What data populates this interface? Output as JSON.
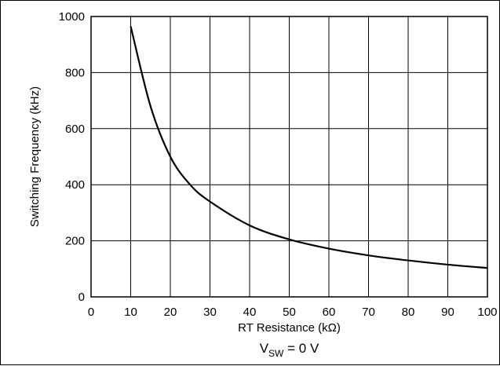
{
  "chart_data": {
    "type": "line",
    "xlabel": "RT Resistance (kΩ)",
    "ylabel": "Switching Frequency (kHz)",
    "xlim": [
      0,
      100
    ],
    "ylim": [
      0,
      1000
    ],
    "x_ticks": [
      "0",
      "10",
      "20",
      "30",
      "40",
      "50",
      "60",
      "70",
      "80",
      "90",
      "100"
    ],
    "y_ticks": [
      "0",
      "200",
      "400",
      "600",
      "800",
      "1000"
    ],
    "grid": true,
    "series": [
      {
        "x": [
          10,
          15,
          20,
          25,
          30,
          40,
          50,
          60,
          70,
          80,
          90,
          100
        ],
        "y": [
          965,
          680,
          500,
          400,
          340,
          255,
          205,
          172,
          148,
          130,
          115,
          103
        ]
      }
    ],
    "condition": {
      "main": "V",
      "sub": "SW",
      "rest": " = 0 V"
    }
  },
  "colors": {
    "line": "#000000",
    "grid": "#000000",
    "background": "#ffffff"
  }
}
